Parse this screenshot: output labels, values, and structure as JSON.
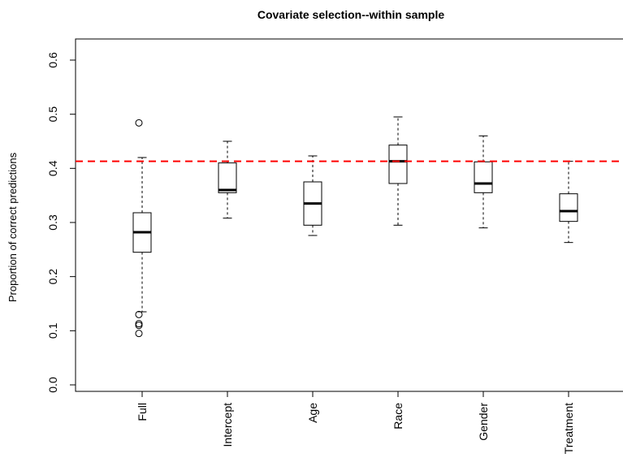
{
  "chart_data": {
    "type": "boxplot",
    "title": "Covariate selection--within sample",
    "xlabel": "",
    "ylabel": "Proportion of correct predictions",
    "ylim": [
      0.0,
      0.6
    ],
    "yticks": [
      "0.0",
      "0.1",
      "0.2",
      "0.3",
      "0.4",
      "0.5",
      "0.6"
    ],
    "categories": [
      "Full",
      "Intercept",
      "Age",
      "Race",
      "Gender",
      "Treatment"
    ],
    "boxes": [
      {
        "name": "Full",
        "whisker_low": 0.135,
        "q1": 0.245,
        "median": 0.282,
        "q3": 0.318,
        "whisker_high": 0.42,
        "outliers": [
          0.484,
          0.13,
          0.113,
          0.11,
          0.095
        ]
      },
      {
        "name": "Intercept",
        "whisker_low": 0.308,
        "q1": 0.355,
        "median": 0.36,
        "q3": 0.41,
        "whisker_high": 0.45,
        "outliers": []
      },
      {
        "name": "Age",
        "whisker_low": 0.276,
        "q1": 0.295,
        "median": 0.335,
        "q3": 0.375,
        "whisker_high": 0.423,
        "outliers": []
      },
      {
        "name": "Race",
        "whisker_low": 0.295,
        "q1": 0.372,
        "median": 0.413,
        "q3": 0.443,
        "whisker_high": 0.495,
        "outliers": []
      },
      {
        "name": "Gender",
        "whisker_low": 0.29,
        "q1": 0.355,
        "median": 0.372,
        "q3": 0.412,
        "whisker_high": 0.46,
        "outliers": []
      },
      {
        "name": "Treatment",
        "whisker_low": 0.263,
        "q1": 0.302,
        "median": 0.321,
        "q3": 0.353,
        "whisker_high": 0.413,
        "outliers": []
      }
    ],
    "reference_line": {
      "value": 0.413,
      "color": "#ff0000",
      "style": "dashed"
    },
    "colors": {
      "box_fill": "#ffffff",
      "stroke": "#000000",
      "reference": "#ff0000"
    }
  }
}
